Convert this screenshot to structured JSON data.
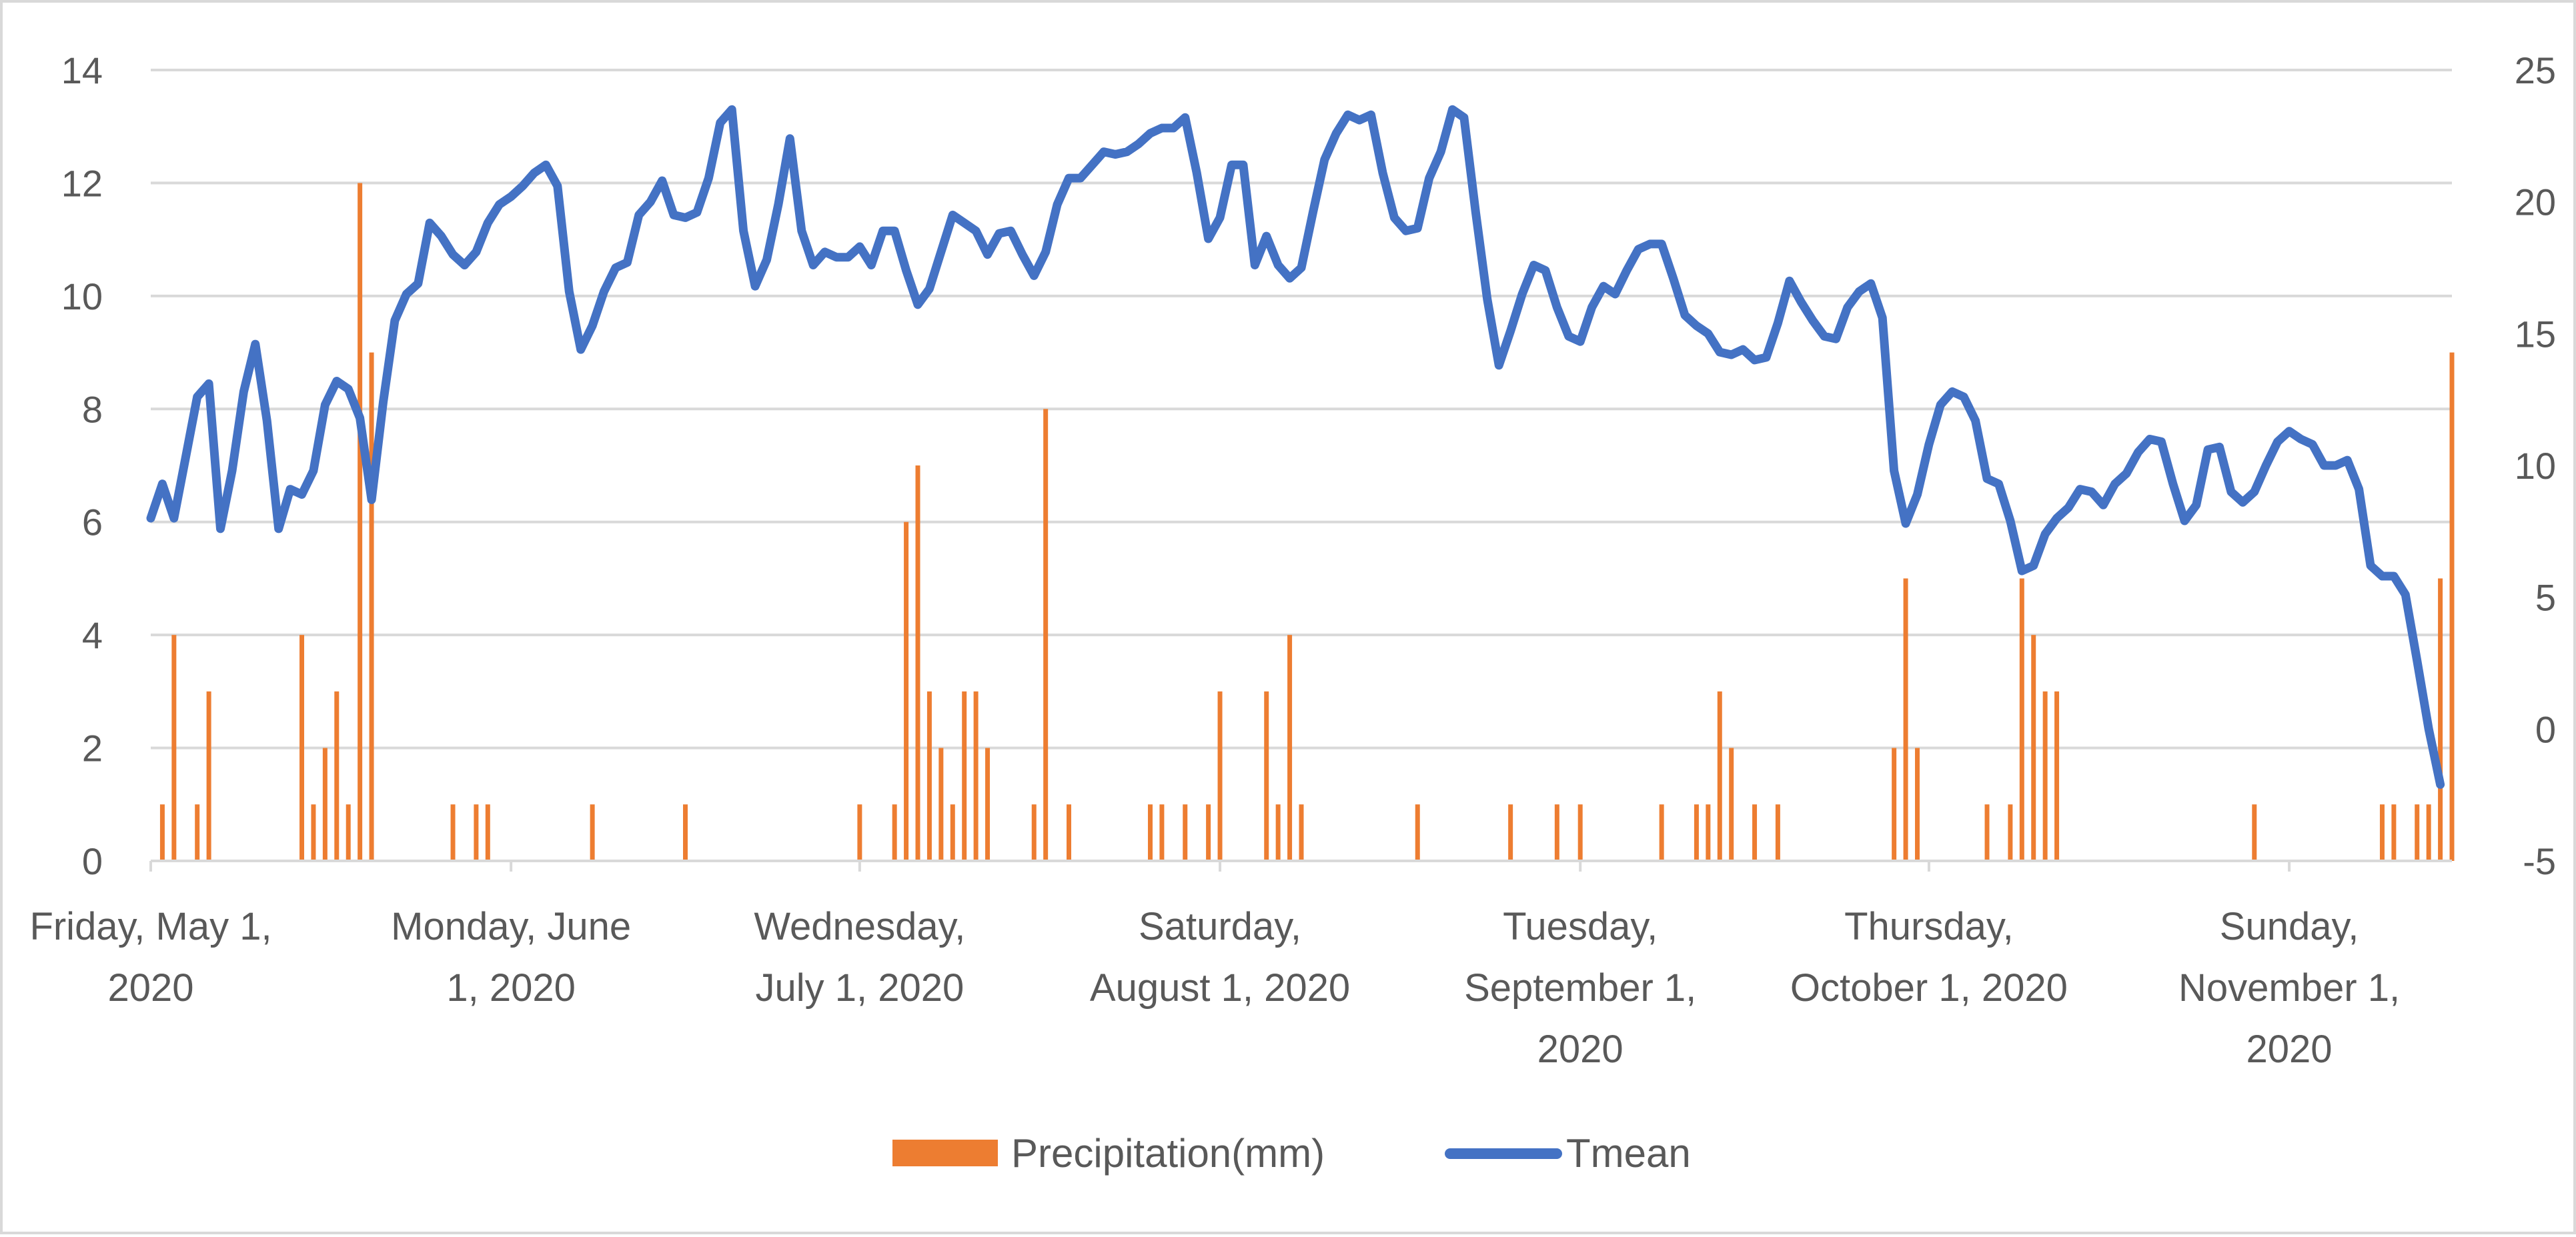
{
  "chart_data": {
    "type": "bar+line",
    "title": "",
    "x_start_date": "2020-05-01",
    "num_days": 199,
    "x_tick_labels": [
      {
        "day": 0,
        "lines": [
          "Friday, May 1,",
          "2020"
        ]
      },
      {
        "day": 31,
        "lines": [
          "Monday, June",
          "1, 2020"
        ]
      },
      {
        "day": 61,
        "lines": [
          "Wednesday,",
          "July 1, 2020"
        ]
      },
      {
        "day": 92,
        "lines": [
          "Saturday,",
          "August 1, 2020"
        ]
      },
      {
        "day": 123,
        "lines": [
          "Tuesday,",
          "September 1,",
          "2020"
        ]
      },
      {
        "day": 153,
        "lines": [
          "Thursday,",
          "October 1, 2020"
        ]
      },
      {
        "day": 184,
        "lines": [
          "Sunday,",
          "November 1,",
          "2020"
        ]
      }
    ],
    "y_left": {
      "min": 0,
      "max": 14,
      "step": 2,
      "ticks": [
        "0",
        "2",
        "4",
        "6",
        "8",
        "10",
        "12",
        "14"
      ]
    },
    "y_right": {
      "min": -5,
      "max": 25,
      "step": 5,
      "ticks": [
        "-5",
        "0",
        "5",
        "10",
        "15",
        "20",
        "25"
      ]
    },
    "grid": true,
    "legend_position": "bottom",
    "series": [
      {
        "name": "Precipitation(mm)",
        "type": "bar",
        "axis": "left",
        "color": "#ED7D31",
        "days": [
          1,
          2,
          4,
          5,
          13,
          14,
          15,
          16,
          17,
          18,
          19,
          26,
          28,
          29,
          38,
          46,
          61,
          64,
          65,
          66,
          67,
          68,
          69,
          70,
          71,
          72,
          76,
          77,
          79,
          86,
          87,
          89,
          91,
          92,
          96,
          97,
          98,
          99,
          109,
          117,
          121,
          123,
          130,
          133,
          134,
          135,
          136,
          138,
          140,
          150,
          151,
          152,
          158,
          160,
          161,
          162,
          163,
          164,
          181,
          192,
          193,
          195,
          196,
          197,
          198
        ],
        "values": [
          1,
          4,
          1,
          3,
          4,
          1,
          2,
          3,
          1,
          12,
          9,
          1,
          1,
          1,
          1,
          1,
          1,
          1,
          6,
          7,
          3,
          2,
          1,
          3,
          3,
          2,
          1,
          8,
          1,
          1,
          1,
          1,
          1,
          3,
          3,
          1,
          4,
          1,
          1,
          1,
          1,
          1,
          1,
          1,
          1,
          3,
          2,
          1,
          1,
          2,
          5,
          2,
          1,
          1,
          5,
          4,
          3,
          3,
          1,
          1,
          1,
          1,
          1,
          5,
          9
        ]
      },
      {
        "name": "Tmean",
        "type": "line",
        "axis": "right",
        "color": "#4472C4",
        "values": [
          8.0,
          9.3,
          8.0,
          10.3,
          12.6,
          13.1,
          7.6,
          9.8,
          12.8,
          14.6,
          11.7,
          7.6,
          9.1,
          8.9,
          9.8,
          12.3,
          13.2,
          12.9,
          11.8,
          8.7,
          12.4,
          15.5,
          16.5,
          16.9,
          19.2,
          18.7,
          18.0,
          17.6,
          18.1,
          19.2,
          19.9,
          20.2,
          20.6,
          21.1,
          21.4,
          20.6,
          16.6,
          14.4,
          15.3,
          16.6,
          17.5,
          17.7,
          19.5,
          20.0,
          20.8,
          19.5,
          19.4,
          19.6,
          20.9,
          23.0,
          23.5,
          18.9,
          16.8,
          17.8,
          19.9,
          22.4,
          18.9,
          17.6,
          18.1,
          17.9,
          17.9,
          18.3,
          17.6,
          18.9,
          18.9,
          17.4,
          16.1,
          16.7,
          18.1,
          19.5,
          19.2,
          18.9,
          18.0,
          18.8,
          18.9,
          18.0,
          17.2,
          18.1,
          19.9,
          20.9,
          20.9,
          21.4,
          21.9,
          21.8,
          21.9,
          22.2,
          22.6,
          22.8,
          22.8,
          23.2,
          21.1,
          18.6,
          19.4,
          21.4,
          21.4,
          17.6,
          18.7,
          17.6,
          17.1,
          17.5,
          19.6,
          21.6,
          22.6,
          23.3,
          23.1,
          23.3,
          21.1,
          19.4,
          18.9,
          19.0,
          20.9,
          21.9,
          23.5,
          23.2,
          19.6,
          16.3,
          13.8,
          15.1,
          16.5,
          17.6,
          17.4,
          16.0,
          14.9,
          14.7,
          16.0,
          16.8,
          16.5,
          17.4,
          18.2,
          18.4,
          18.4,
          17.1,
          15.7,
          15.3,
          15.0,
          14.3,
          14.2,
          14.4,
          14.0,
          14.1,
          15.4,
          17.0,
          16.2,
          15.5,
          14.9,
          14.8,
          16.0,
          16.6,
          16.9,
          15.6,
          9.8,
          7.8,
          8.9,
          10.8,
          12.3,
          12.8,
          12.6,
          11.7,
          9.5,
          9.3,
          7.9,
          6.0,
          6.2,
          7.4,
          8.0,
          8.4,
          9.1,
          9.0,
          8.5,
          9.3,
          9.7,
          10.5,
          11.0,
          10.9,
          9.3,
          7.9,
          8.5,
          10.6,
          10.7,
          9.0,
          8.6,
          9.0,
          10.0,
          10.9,
          11.3,
          11.0,
          10.8,
          10.0,
          10.0,
          10.2,
          9.1,
          6.2,
          5.8,
          5.8,
          5.1,
          2.6,
          0.0,
          -2.1
        ]
      }
    ]
  }
}
